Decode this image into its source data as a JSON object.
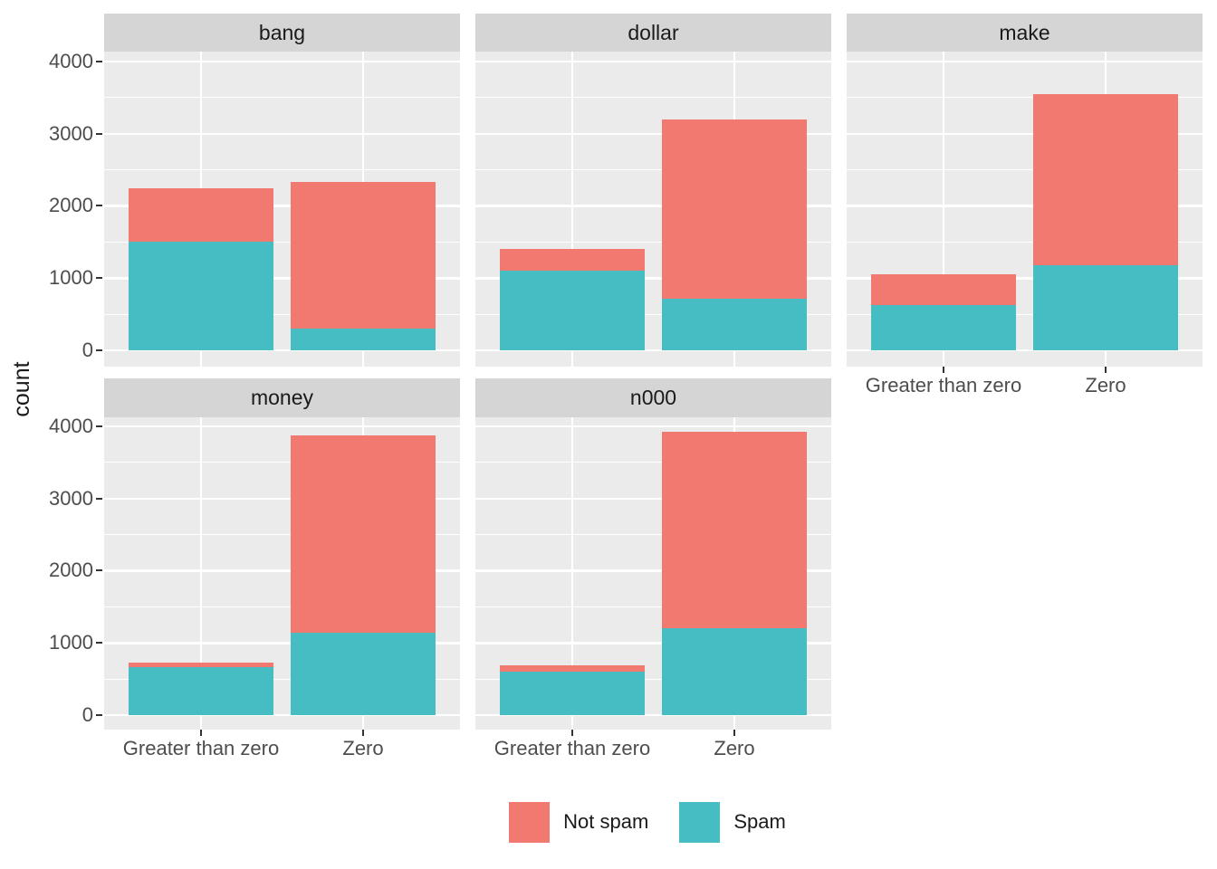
{
  "chart_data": {
    "type": "bar",
    "variant": "stacked-faceted",
    "title": "",
    "xlabel": "",
    "ylabel": "count",
    "categories": [
      "Greater than zero",
      "Zero"
    ],
    "series": [
      {
        "key": "not_spam",
        "name": "Not spam",
        "color": "#F1796F"
      },
      {
        "key": "spam",
        "name": "Spam",
        "color": "#45BDC2"
      }
    ],
    "stack_order_bottom_to_top": [
      "spam",
      "not_spam"
    ],
    "y_ticks": [
      0,
      1000,
      2000,
      3000,
      4000
    ],
    "ylim": [
      0,
      4125
    ],
    "grid": true,
    "legend_position": "bottom",
    "facets": [
      {
        "label": "bang",
        "bars": [
          {
            "category": "Greater than zero",
            "spam": 1500,
            "not_spam": 740,
            "total": 2240
          },
          {
            "category": "Zero",
            "spam": 300,
            "not_spam": 2030,
            "total": 2330
          }
        ]
      },
      {
        "label": "dollar",
        "bars": [
          {
            "category": "Greater than zero",
            "spam": 1100,
            "not_spam": 300,
            "total": 1400
          },
          {
            "category": "Zero",
            "spam": 710,
            "not_spam": 2490,
            "total": 3200
          }
        ]
      },
      {
        "label": "make",
        "bars": [
          {
            "category": "Greater than zero",
            "spam": 630,
            "not_spam": 420,
            "total": 1050
          },
          {
            "category": "Zero",
            "spam": 1180,
            "not_spam": 2370,
            "total": 3550
          }
        ]
      },
      {
        "label": "money",
        "bars": [
          {
            "category": "Greater than zero",
            "spam": 670,
            "not_spam": 60,
            "total": 730
          },
          {
            "category": "Zero",
            "spam": 1140,
            "not_spam": 2730,
            "total": 3870
          }
        ]
      },
      {
        "label": "n000",
        "bars": [
          {
            "category": "Greater than zero",
            "spam": 605,
            "not_spam": 85,
            "total": 690
          },
          {
            "category": "Zero",
            "spam": 1200,
            "not_spam": 2720,
            "total": 3920
          }
        ]
      }
    ],
    "style": {
      "panel_bg": "#EBEBEB",
      "strip_bg": "#D5D5D5",
      "grid_color": "#FFFFFF",
      "tick_color": "#333333",
      "axis_text_color": "#4D4D4D",
      "strip_text_color": "#1A1A1A"
    },
    "legend": {
      "entries": [
        {
          "label": "Not spam",
          "color": "#F1796F"
        },
        {
          "label": "Spam",
          "color": "#45BDC2"
        }
      ]
    }
  }
}
